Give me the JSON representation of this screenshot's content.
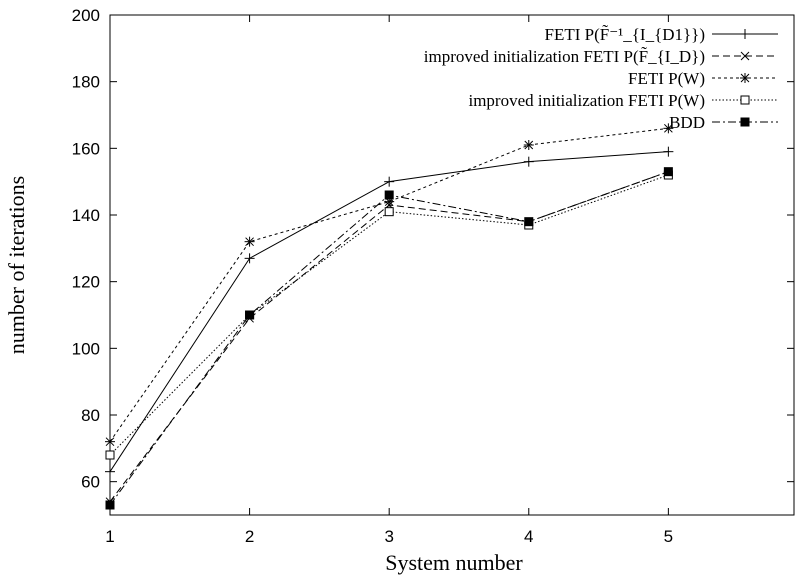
{
  "chart_data": {
    "type": "line",
    "xlabel": "System number",
    "ylabel": "number of iterations",
    "x": [
      1,
      2,
      3,
      4,
      5
    ],
    "xlim": [
      1,
      5.9
    ],
    "ylim": [
      50,
      200
    ],
    "x_ticks": [
      "1",
      "2",
      "3",
      "4",
      "5"
    ],
    "y_ticks": [
      "60",
      "80",
      "100",
      "120",
      "140",
      "160",
      "180",
      "200"
    ],
    "grid": false,
    "legend_position": "top-right",
    "series": [
      {
        "name": "FETI P(F̃⁻¹_{I_{D1}})",
        "values": [
          63,
          127,
          150,
          156,
          159
        ],
        "marker": "plus",
        "dash": "solid"
      },
      {
        "name": "improved initialization FETI P(F̃_{I_D})",
        "values": [
          54,
          109,
          143,
          138,
          153
        ],
        "marker": "cross",
        "dash": "dashed"
      },
      {
        "name": "FETI P(W)",
        "values": [
          72,
          132,
          144,
          161,
          166
        ],
        "marker": "star",
        "dash": "dotted"
      },
      {
        "name": "improved initialization FETI P(W)",
        "values": [
          68,
          110,
          141,
          137,
          152
        ],
        "marker": "square-open",
        "dash": "fine-dotted"
      },
      {
        "name": "BDD",
        "values": [
          53,
          110,
          146,
          138,
          153
        ],
        "marker": "square-filled",
        "dash": "dash-dot"
      }
    ]
  }
}
